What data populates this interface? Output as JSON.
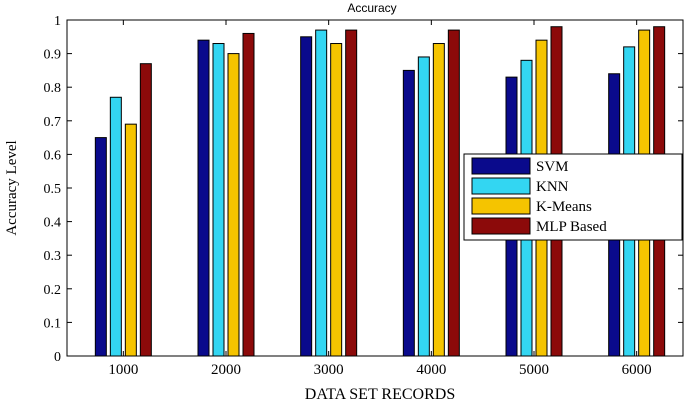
{
  "chart_data": {
    "type": "bar",
    "title": "Accuracy",
    "xlabel": "DATA SET RECORDS",
    "ylabel": "Accuracy Level",
    "categories": [
      "1000",
      "2000",
      "3000",
      "4000",
      "5000",
      "6000"
    ],
    "ylim": [
      0,
      1
    ],
    "yticks": [
      "0",
      "0.1",
      "0.2",
      "0.3",
      "0.4",
      "0.5",
      "0.6",
      "0.7",
      "0.8",
      "0.9",
      "1"
    ],
    "grid": false,
    "legend_position": "right",
    "series": [
      {
        "name": "SVM",
        "color": "#0a0a8c",
        "values": [
          0.65,
          0.94,
          0.95,
          0.85,
          0.83,
          0.84
        ]
      },
      {
        "name": "KNN",
        "color": "#33d6f2",
        "values": [
          0.77,
          0.93,
          0.97,
          0.89,
          0.88,
          0.92
        ]
      },
      {
        "name": "K-Means",
        "color": "#f5c400",
        "values": [
          0.69,
          0.9,
          0.93,
          0.93,
          0.94,
          0.97
        ]
      },
      {
        "name": "MLP Based",
        "color": "#8c0a0a",
        "values": [
          0.87,
          0.96,
          0.97,
          0.97,
          0.98,
          0.98
        ]
      }
    ]
  }
}
